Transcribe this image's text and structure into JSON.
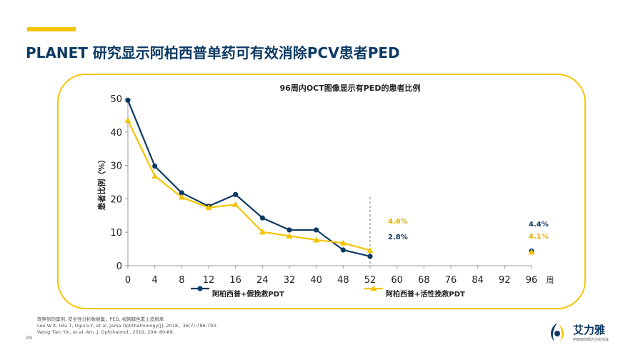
{
  "slide": {
    "title": "PLANET 研究显示阿柏西普单药可有效消除PCV患者PED",
    "accent_color": "#f5c400",
    "title_color": "#0d3a63",
    "page_number": "24"
  },
  "footnote": {
    "lines": [
      "观察到的案例, 安全性分析数据集；PED, 视网膜色素上皮脱离",
      "Lee W K, Iida T, Ogura Y, et al. Jama Ophthalmology[J], 2018，36(7):786-793.",
      "Wong Tien Yin, et al. Am. J. Ophthalmol., 2019, 204: 80-89."
    ]
  },
  "logo": {
    "name": "艾力雅",
    "subtitle": "阿柏西普眼内注射溶液",
    "icon": "eye-logo-icon"
  },
  "chart_data": {
    "type": "line",
    "title": "96周内OCT图像显示有PED的患者比例",
    "ylabel": "患者比例（%）",
    "xunit": "周",
    "ylim": [
      0,
      50
    ],
    "yticks": [
      0,
      10,
      20,
      30,
      40,
      50
    ],
    "xticks": [
      0,
      4,
      8,
      12,
      16,
      24,
      32,
      40,
      48,
      52,
      60,
      68,
      76,
      84,
      92,
      96
    ],
    "grid": false,
    "legend_position": "bottom",
    "series": [
      {
        "name": "阿柏西普+假挽救PDT",
        "color": "#0d3a63",
        "marker": "circle",
        "x": [
          0,
          4,
          8,
          12,
          16,
          24,
          32,
          40,
          48,
          52
        ],
        "y": [
          49.5,
          29.8,
          21.8,
          17.8,
          21.3,
          14.3,
          10.7,
          10.7,
          4.7,
          2.8
        ],
        "extra": {
          "x": 96,
          "y": 4.4
        },
        "labels": [
          {
            "x": 52,
            "text": "2.8%"
          },
          {
            "x": 96,
            "text": "4.4%"
          }
        ]
      },
      {
        "name": "阿柏西普+活性挽救PDT",
        "color": "#f5c400",
        "marker": "triangle",
        "x": [
          0,
          4,
          8,
          12,
          16,
          24,
          32,
          40,
          48,
          52
        ],
        "y": [
          43.5,
          26.8,
          20.5,
          17.4,
          18.3,
          10.1,
          8.9,
          7.7,
          6.8,
          4.6
        ],
        "extra": {
          "x": 96,
          "y": 4.1
        },
        "labels": [
          {
            "x": 52,
            "text": "4.6%"
          },
          {
            "x": 96,
            "text": "4.1%"
          }
        ]
      }
    ]
  }
}
